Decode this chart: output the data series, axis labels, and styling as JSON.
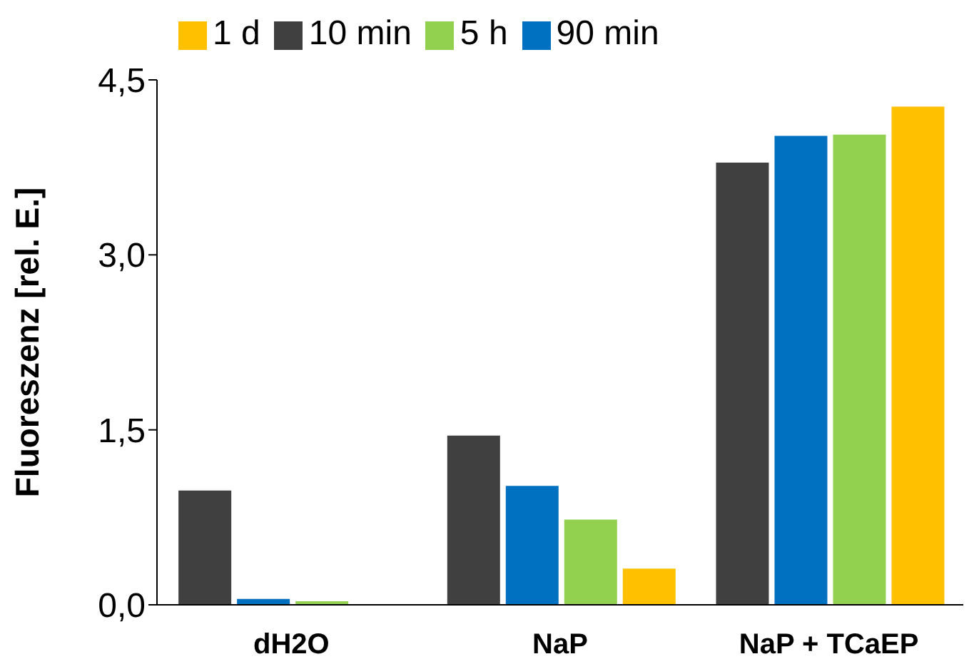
{
  "chart_data": {
    "type": "bar",
    "ylabel": "Fluoreszenz [rel. E.]",
    "categories": [
      "dH2O",
      "NaP",
      "NaP + TCaEP"
    ],
    "series": [
      {
        "name": "10 min",
        "color": "#404040",
        "values": [
          0.98,
          1.45,
          3.79
        ]
      },
      {
        "name": "90 min",
        "color": "#0070c0",
        "values": [
          0.05,
          1.02,
          4.02
        ]
      },
      {
        "name": "5 h",
        "color": "#92d050",
        "values": [
          0.03,
          0.73,
          4.03
        ]
      },
      {
        "name": "1 d",
        "color": "#ffc000",
        "values": [
          0,
          0.31,
          4.27
        ]
      }
    ],
    "ylim": [
      0,
      4.5
    ],
    "yticks": [
      {
        "value": 0,
        "label": "0,0"
      },
      {
        "value": 1.5,
        "label": "1,5"
      },
      {
        "value": 3,
        "label": "3,0"
      },
      {
        "value": 4.5,
        "label": "4,5"
      }
    ],
    "grid": false,
    "legend": "top left"
  }
}
